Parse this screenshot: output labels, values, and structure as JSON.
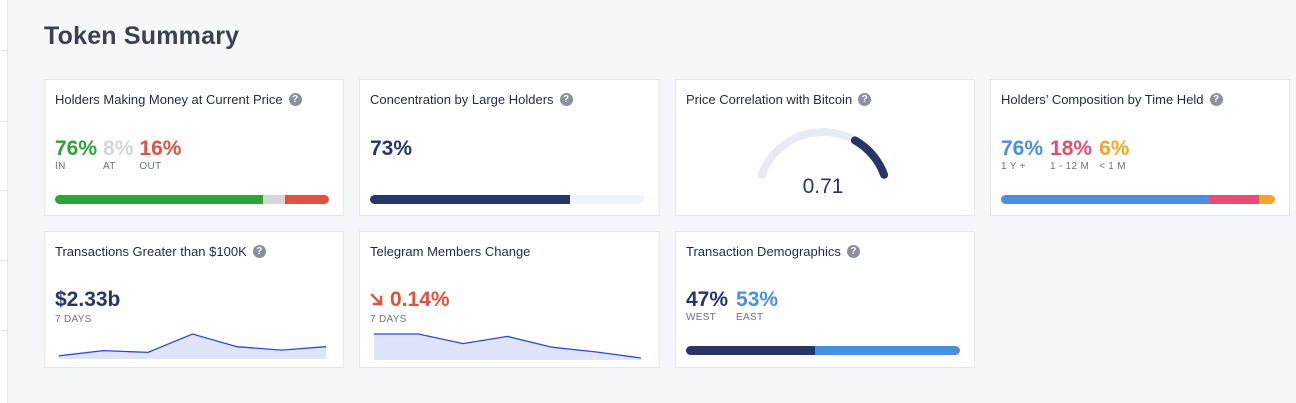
{
  "title": "Token Summary",
  "cards": {
    "holders_money": {
      "title": "Holders Making Money at Current Price",
      "stats": [
        {
          "value": "76%",
          "label": "IN",
          "color": "#27a535"
        },
        {
          "value": "8%",
          "label": "AT",
          "color": "#d6d6d6"
        },
        {
          "value": "16%",
          "label": "OUT",
          "color": "#e0523d"
        }
      ],
      "bar": [
        0.76,
        0.08,
        0.16
      ]
    },
    "concentration": {
      "title": "Concentration by Large Holders",
      "value": "73%",
      "bar_fill": 0.73,
      "colors": {
        "fill": "#27356b",
        "track": "#eef4fc"
      }
    },
    "price_correlation": {
      "title": "Price Correlation with Bitcoin",
      "value": "0.71",
      "gauge_fill": 0.71,
      "colors": {
        "fill": "#27356b",
        "track": "#e8ebf1"
      }
    },
    "composition": {
      "title": "Holders’ Composition by Time Held",
      "stats": [
        {
          "value": "76%",
          "label": "1 Y +",
          "color": "#4a90e2"
        },
        {
          "value": "18%",
          "label": "1 - 12 M",
          "color": "#e94b73"
        },
        {
          "value": "6%",
          "label": "< 1 M",
          "color": "#f5a623"
        }
      ],
      "bar": [
        0.76,
        0.18,
        0.06
      ]
    },
    "transactions": {
      "title": "Transactions Greater than $100K",
      "value": "$2.33b",
      "period": "7 DAYS",
      "sparkline": [
        0.05,
        0.28,
        0.2,
        1.0,
        0.45,
        0.3,
        0.45
      ]
    },
    "telegram": {
      "title": "Telegram Members Change",
      "value": "0.14%",
      "period": "7 DAYS",
      "trend_icon": "arrow-down-right-icon",
      "color": "#e0523d",
      "sparkline": [
        1.0,
        1.0,
        0.6,
        0.9,
        0.45,
        0.25,
        0.0
      ]
    },
    "demographics": {
      "title": "Transaction Demographics",
      "stats": [
        {
          "value": "47%",
          "label": "WEST",
          "color": "#27356b"
        },
        {
          "value": "53%",
          "label": "EAST",
          "color": "#4a90e2"
        }
      ],
      "bar": [
        0.47,
        0.53
      ]
    }
  },
  "icons": {
    "help": "question-circle-icon",
    "help_glyph": "?"
  }
}
